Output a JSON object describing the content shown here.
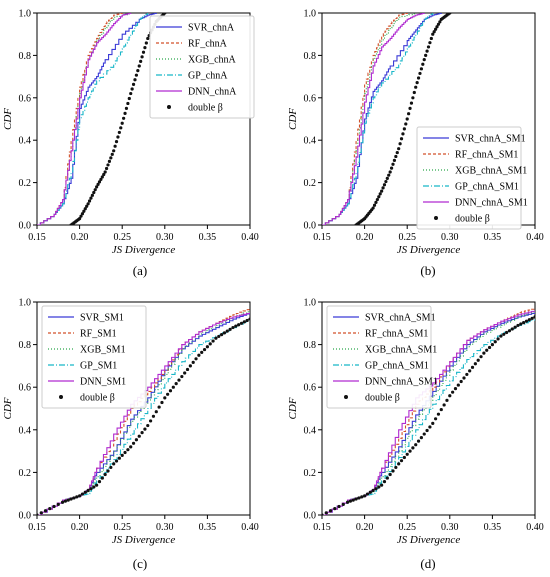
{
  "figure": {
    "captions": [
      "(a)",
      "(b)",
      "(c)",
      "(d)"
    ]
  },
  "styles": {
    "SVR": {
      "color": "#3a3ad6",
      "dash": ""
    },
    "RF": {
      "color": "#d2502a",
      "dash": "3,2"
    },
    "XGB": {
      "color": "#2aa84a",
      "dash": "1,2"
    },
    "GP": {
      "color": "#18b6c8",
      "dash": "6,2,1,2"
    },
    "DNN": {
      "color": "#b02ad0",
      "dash": ""
    },
    "double": {
      "color": "#111111",
      "dash": ""
    }
  },
  "chart_data": [
    {
      "type": "line",
      "caption": "(a)",
      "xlabel": "JS Divergence",
      "ylabel": "CDF",
      "xlim": [
        0.15,
        0.4
      ],
      "ylim": [
        0.0,
        1.0
      ],
      "xticks": [
        "0.15",
        "0.20",
        "0.25",
        "0.30",
        "0.35",
        "0.40"
      ],
      "yticks": [
        "0.0",
        "0.2",
        "0.4",
        "0.6",
        "0.8",
        "1.0"
      ],
      "legend_position": "top-right",
      "series": [
        {
          "name": "SVR_chnA",
          "style": "SVR",
          "x": [
            0.15,
            0.17,
            0.18,
            0.19,
            0.2,
            0.21,
            0.22,
            0.23,
            0.25,
            0.27,
            0.28,
            0.29
          ],
          "y": [
            0.0,
            0.05,
            0.1,
            0.22,
            0.55,
            0.65,
            0.7,
            0.78,
            0.9,
            0.97,
            0.99,
            1.0
          ]
        },
        {
          "name": "RF_chnA",
          "style": "RF",
          "x": [
            0.15,
            0.17,
            0.18,
            0.19,
            0.2,
            0.21,
            0.22,
            0.23,
            0.24,
            0.25
          ],
          "y": [
            0.0,
            0.05,
            0.12,
            0.4,
            0.65,
            0.8,
            0.88,
            0.95,
            0.99,
            1.0
          ]
        },
        {
          "name": "XGB_chnA",
          "style": "XGB",
          "x": [
            0.15,
            0.17,
            0.18,
            0.19,
            0.2,
            0.21,
            0.22,
            0.23,
            0.24,
            0.26
          ],
          "y": [
            0.0,
            0.05,
            0.12,
            0.35,
            0.62,
            0.78,
            0.87,
            0.93,
            0.98,
            1.0
          ]
        },
        {
          "name": "GP_chnA",
          "style": "GP",
          "x": [
            0.15,
            0.17,
            0.18,
            0.19,
            0.2,
            0.21,
            0.22,
            0.24,
            0.25,
            0.26,
            0.27,
            0.28
          ],
          "y": [
            0.0,
            0.05,
            0.1,
            0.25,
            0.5,
            0.6,
            0.68,
            0.76,
            0.83,
            0.9,
            0.97,
            1.0
          ]
        },
        {
          "name": "DNN_chnA",
          "style": "DNN",
          "x": [
            0.15,
            0.17,
            0.18,
            0.19,
            0.2,
            0.21,
            0.22,
            0.23,
            0.24,
            0.25,
            0.26
          ],
          "y": [
            0.0,
            0.05,
            0.12,
            0.35,
            0.6,
            0.78,
            0.86,
            0.9,
            0.95,
            0.99,
            1.0
          ]
        },
        {
          "name": "double β",
          "style": "double",
          "marker": true,
          "x": [
            0.19,
            0.2,
            0.21,
            0.22,
            0.23,
            0.24,
            0.25,
            0.26,
            0.27,
            0.28,
            0.29,
            0.3
          ],
          "y": [
            0.0,
            0.03,
            0.1,
            0.18,
            0.25,
            0.35,
            0.48,
            0.62,
            0.75,
            0.88,
            0.96,
            1.0
          ]
        }
      ]
    },
    {
      "type": "line",
      "caption": "(b)",
      "xlabel": "JS Divergence",
      "ylabel": "CDF",
      "xlim": [
        0.15,
        0.4
      ],
      "ylim": [
        0.0,
        1.0
      ],
      "xticks": [
        "0.15",
        "0.20",
        "0.25",
        "0.30",
        "0.35",
        "0.40"
      ],
      "yticks": [
        "0.0",
        "0.2",
        "0.4",
        "0.6",
        "0.8",
        "1.0"
      ],
      "legend_position": "lower-right",
      "series": [
        {
          "name": "SVR_chnA_SM1",
          "style": "SVR",
          "x": [
            0.15,
            0.17,
            0.18,
            0.19,
            0.2,
            0.21,
            0.22,
            0.23,
            0.25,
            0.26,
            0.27,
            0.28,
            0.29
          ],
          "y": [
            0.0,
            0.05,
            0.1,
            0.22,
            0.5,
            0.63,
            0.68,
            0.75,
            0.87,
            0.92,
            0.97,
            0.99,
            1.0
          ]
        },
        {
          "name": "RF_chnA_SM1",
          "style": "RF",
          "x": [
            0.15,
            0.17,
            0.18,
            0.19,
            0.2,
            0.21,
            0.22,
            0.23,
            0.24,
            0.25
          ],
          "y": [
            0.0,
            0.05,
            0.12,
            0.4,
            0.66,
            0.8,
            0.89,
            0.95,
            0.99,
            1.0
          ]
        },
        {
          "name": "XGB_chnA_SM1",
          "style": "XGB",
          "x": [
            0.15,
            0.17,
            0.18,
            0.19,
            0.2,
            0.21,
            0.22,
            0.23,
            0.24,
            0.26
          ],
          "y": [
            0.0,
            0.05,
            0.12,
            0.35,
            0.62,
            0.78,
            0.87,
            0.93,
            0.98,
            1.0
          ]
        },
        {
          "name": "GP_chnA_SM1",
          "style": "GP",
          "x": [
            0.15,
            0.17,
            0.18,
            0.19,
            0.2,
            0.21,
            0.22,
            0.24,
            0.25,
            0.26,
            0.27,
            0.28
          ],
          "y": [
            0.0,
            0.05,
            0.1,
            0.25,
            0.48,
            0.6,
            0.67,
            0.76,
            0.83,
            0.9,
            0.97,
            1.0
          ]
        },
        {
          "name": "DNN_chnA_SM1",
          "style": "DNN",
          "x": [
            0.15,
            0.17,
            0.18,
            0.19,
            0.2,
            0.21,
            0.22,
            0.23,
            0.24,
            0.25,
            0.26,
            0.27
          ],
          "y": [
            0.0,
            0.05,
            0.12,
            0.32,
            0.58,
            0.75,
            0.84,
            0.88,
            0.93,
            0.97,
            0.99,
            1.0
          ]
        },
        {
          "name": "double β",
          "style": "double",
          "marker": true,
          "x": [
            0.19,
            0.2,
            0.21,
            0.22,
            0.23,
            0.24,
            0.25,
            0.26,
            0.27,
            0.28,
            0.29,
            0.3
          ],
          "y": [
            0.0,
            0.03,
            0.08,
            0.16,
            0.25,
            0.36,
            0.5,
            0.65,
            0.78,
            0.9,
            0.97,
            1.0
          ]
        }
      ]
    },
    {
      "type": "line",
      "caption": "(c)",
      "xlabel": "JS Divergence",
      "ylabel": "CDF",
      "xlim": [
        0.15,
        0.4
      ],
      "ylim": [
        0.0,
        1.0
      ],
      "xticks": [
        "0.15",
        "0.20",
        "0.25",
        "0.30",
        "0.35",
        "0.40"
      ],
      "yticks": [
        "0.0",
        "0.2",
        "0.4",
        "0.6",
        "0.8",
        "1.0"
      ],
      "legend_position": "top-left",
      "series": [
        {
          "name": "SVR_SM1",
          "style": "SVR",
          "x": [
            0.15,
            0.18,
            0.2,
            0.21,
            0.22,
            0.24,
            0.26,
            0.28,
            0.3,
            0.32,
            0.34,
            0.36,
            0.38,
            0.4
          ],
          "y": [
            0.0,
            0.07,
            0.09,
            0.12,
            0.2,
            0.3,
            0.45,
            0.55,
            0.68,
            0.78,
            0.84,
            0.88,
            0.92,
            0.95
          ]
        },
        {
          "name": "RF_SM1",
          "style": "RF",
          "x": [
            0.15,
            0.18,
            0.2,
            0.21,
            0.22,
            0.24,
            0.26,
            0.28,
            0.3,
            0.32,
            0.34,
            0.36,
            0.38,
            0.4
          ],
          "y": [
            0.0,
            0.07,
            0.09,
            0.12,
            0.22,
            0.35,
            0.5,
            0.58,
            0.68,
            0.8,
            0.86,
            0.9,
            0.94,
            0.97
          ]
        },
        {
          "name": "XGB_SM1",
          "style": "XGB",
          "x": [
            0.15,
            0.18,
            0.2,
            0.21,
            0.22,
            0.24,
            0.26,
            0.28,
            0.3,
            0.32,
            0.34,
            0.36,
            0.38,
            0.4
          ],
          "y": [
            0.0,
            0.07,
            0.09,
            0.11,
            0.18,
            0.3,
            0.44,
            0.54,
            0.66,
            0.78,
            0.85,
            0.89,
            0.93,
            0.96
          ]
        },
        {
          "name": "GP_SM1",
          "style": "GP",
          "x": [
            0.15,
            0.18,
            0.2,
            0.21,
            0.22,
            0.24,
            0.26,
            0.28,
            0.3,
            0.32,
            0.34,
            0.36,
            0.38,
            0.4
          ],
          "y": [
            0.0,
            0.07,
            0.09,
            0.1,
            0.16,
            0.26,
            0.38,
            0.5,
            0.62,
            0.72,
            0.8,
            0.84,
            0.88,
            0.92
          ]
        },
        {
          "name": "DNN_SM1",
          "style": "DNN",
          "x": [
            0.15,
            0.18,
            0.2,
            0.21,
            0.22,
            0.24,
            0.26,
            0.28,
            0.3,
            0.32,
            0.34,
            0.36,
            0.38,
            0.4
          ],
          "y": [
            0.0,
            0.07,
            0.09,
            0.12,
            0.22,
            0.38,
            0.52,
            0.6,
            0.7,
            0.8,
            0.86,
            0.9,
            0.93,
            0.95
          ]
        },
        {
          "name": "double β",
          "style": "double",
          "marker": true,
          "x": [
            0.15,
            0.18,
            0.2,
            0.22,
            0.24,
            0.26,
            0.28,
            0.3,
            0.32,
            0.34,
            0.36,
            0.38,
            0.4
          ],
          "y": [
            0.0,
            0.06,
            0.09,
            0.14,
            0.24,
            0.32,
            0.42,
            0.55,
            0.65,
            0.75,
            0.83,
            0.88,
            0.92
          ]
        }
      ]
    },
    {
      "type": "line",
      "caption": "(d)",
      "xlabel": "JS Divergence",
      "ylabel": "CDF",
      "xlim": [
        0.15,
        0.4
      ],
      "ylim": [
        0.0,
        1.0
      ],
      "xticks": [
        "0.15",
        "0.20",
        "0.25",
        "0.30",
        "0.35",
        "0.40"
      ],
      "yticks": [
        "0.0",
        "0.2",
        "0.4",
        "0.6",
        "0.8",
        "1.0"
      ],
      "legend_position": "top-left",
      "series": [
        {
          "name": "SVR_chnA_SM1",
          "style": "SVR",
          "x": [
            0.15,
            0.18,
            0.2,
            0.21,
            0.22,
            0.24,
            0.26,
            0.28,
            0.3,
            0.32,
            0.34,
            0.36,
            0.38,
            0.4
          ],
          "y": [
            0.0,
            0.07,
            0.09,
            0.12,
            0.2,
            0.32,
            0.47,
            0.58,
            0.7,
            0.8,
            0.86,
            0.9,
            0.93,
            0.95
          ]
        },
        {
          "name": "RF_chnA_SM1",
          "style": "RF",
          "x": [
            0.15,
            0.18,
            0.2,
            0.21,
            0.22,
            0.24,
            0.26,
            0.28,
            0.3,
            0.32,
            0.34,
            0.36,
            0.38,
            0.4
          ],
          "y": [
            0.0,
            0.07,
            0.09,
            0.12,
            0.22,
            0.36,
            0.52,
            0.6,
            0.72,
            0.82,
            0.87,
            0.91,
            0.95,
            0.97
          ]
        },
        {
          "name": "XGB_chnA_SM1",
          "style": "XGB",
          "x": [
            0.15,
            0.18,
            0.2,
            0.21,
            0.22,
            0.24,
            0.26,
            0.28,
            0.3,
            0.32,
            0.34,
            0.36,
            0.38,
            0.4
          ],
          "y": [
            0.0,
            0.07,
            0.09,
            0.11,
            0.18,
            0.3,
            0.45,
            0.56,
            0.68,
            0.79,
            0.85,
            0.89,
            0.93,
            0.96
          ]
        },
        {
          "name": "GP_chnA_SM1",
          "style": "GP",
          "x": [
            0.15,
            0.18,
            0.2,
            0.21,
            0.22,
            0.24,
            0.26,
            0.28,
            0.3,
            0.32,
            0.34,
            0.36,
            0.38,
            0.4
          ],
          "y": [
            0.0,
            0.07,
            0.09,
            0.1,
            0.16,
            0.27,
            0.4,
            0.52,
            0.63,
            0.73,
            0.8,
            0.85,
            0.89,
            0.92
          ]
        },
        {
          "name": "DNN_chnA_SM1",
          "style": "DNN",
          "x": [
            0.15,
            0.18,
            0.2,
            0.21,
            0.22,
            0.24,
            0.26,
            0.28,
            0.3,
            0.32,
            0.34,
            0.36,
            0.38,
            0.4
          ],
          "y": [
            0.0,
            0.07,
            0.09,
            0.12,
            0.22,
            0.4,
            0.55,
            0.62,
            0.72,
            0.82,
            0.87,
            0.91,
            0.94,
            0.96
          ]
        },
        {
          "name": "double β",
          "style": "double",
          "marker": true,
          "x": [
            0.15,
            0.18,
            0.2,
            0.22,
            0.24,
            0.26,
            0.28,
            0.3,
            0.32,
            0.34,
            0.36,
            0.38,
            0.4
          ],
          "y": [
            0.0,
            0.06,
            0.09,
            0.14,
            0.24,
            0.33,
            0.43,
            0.56,
            0.66,
            0.76,
            0.84,
            0.89,
            0.93
          ]
        }
      ]
    }
  ]
}
